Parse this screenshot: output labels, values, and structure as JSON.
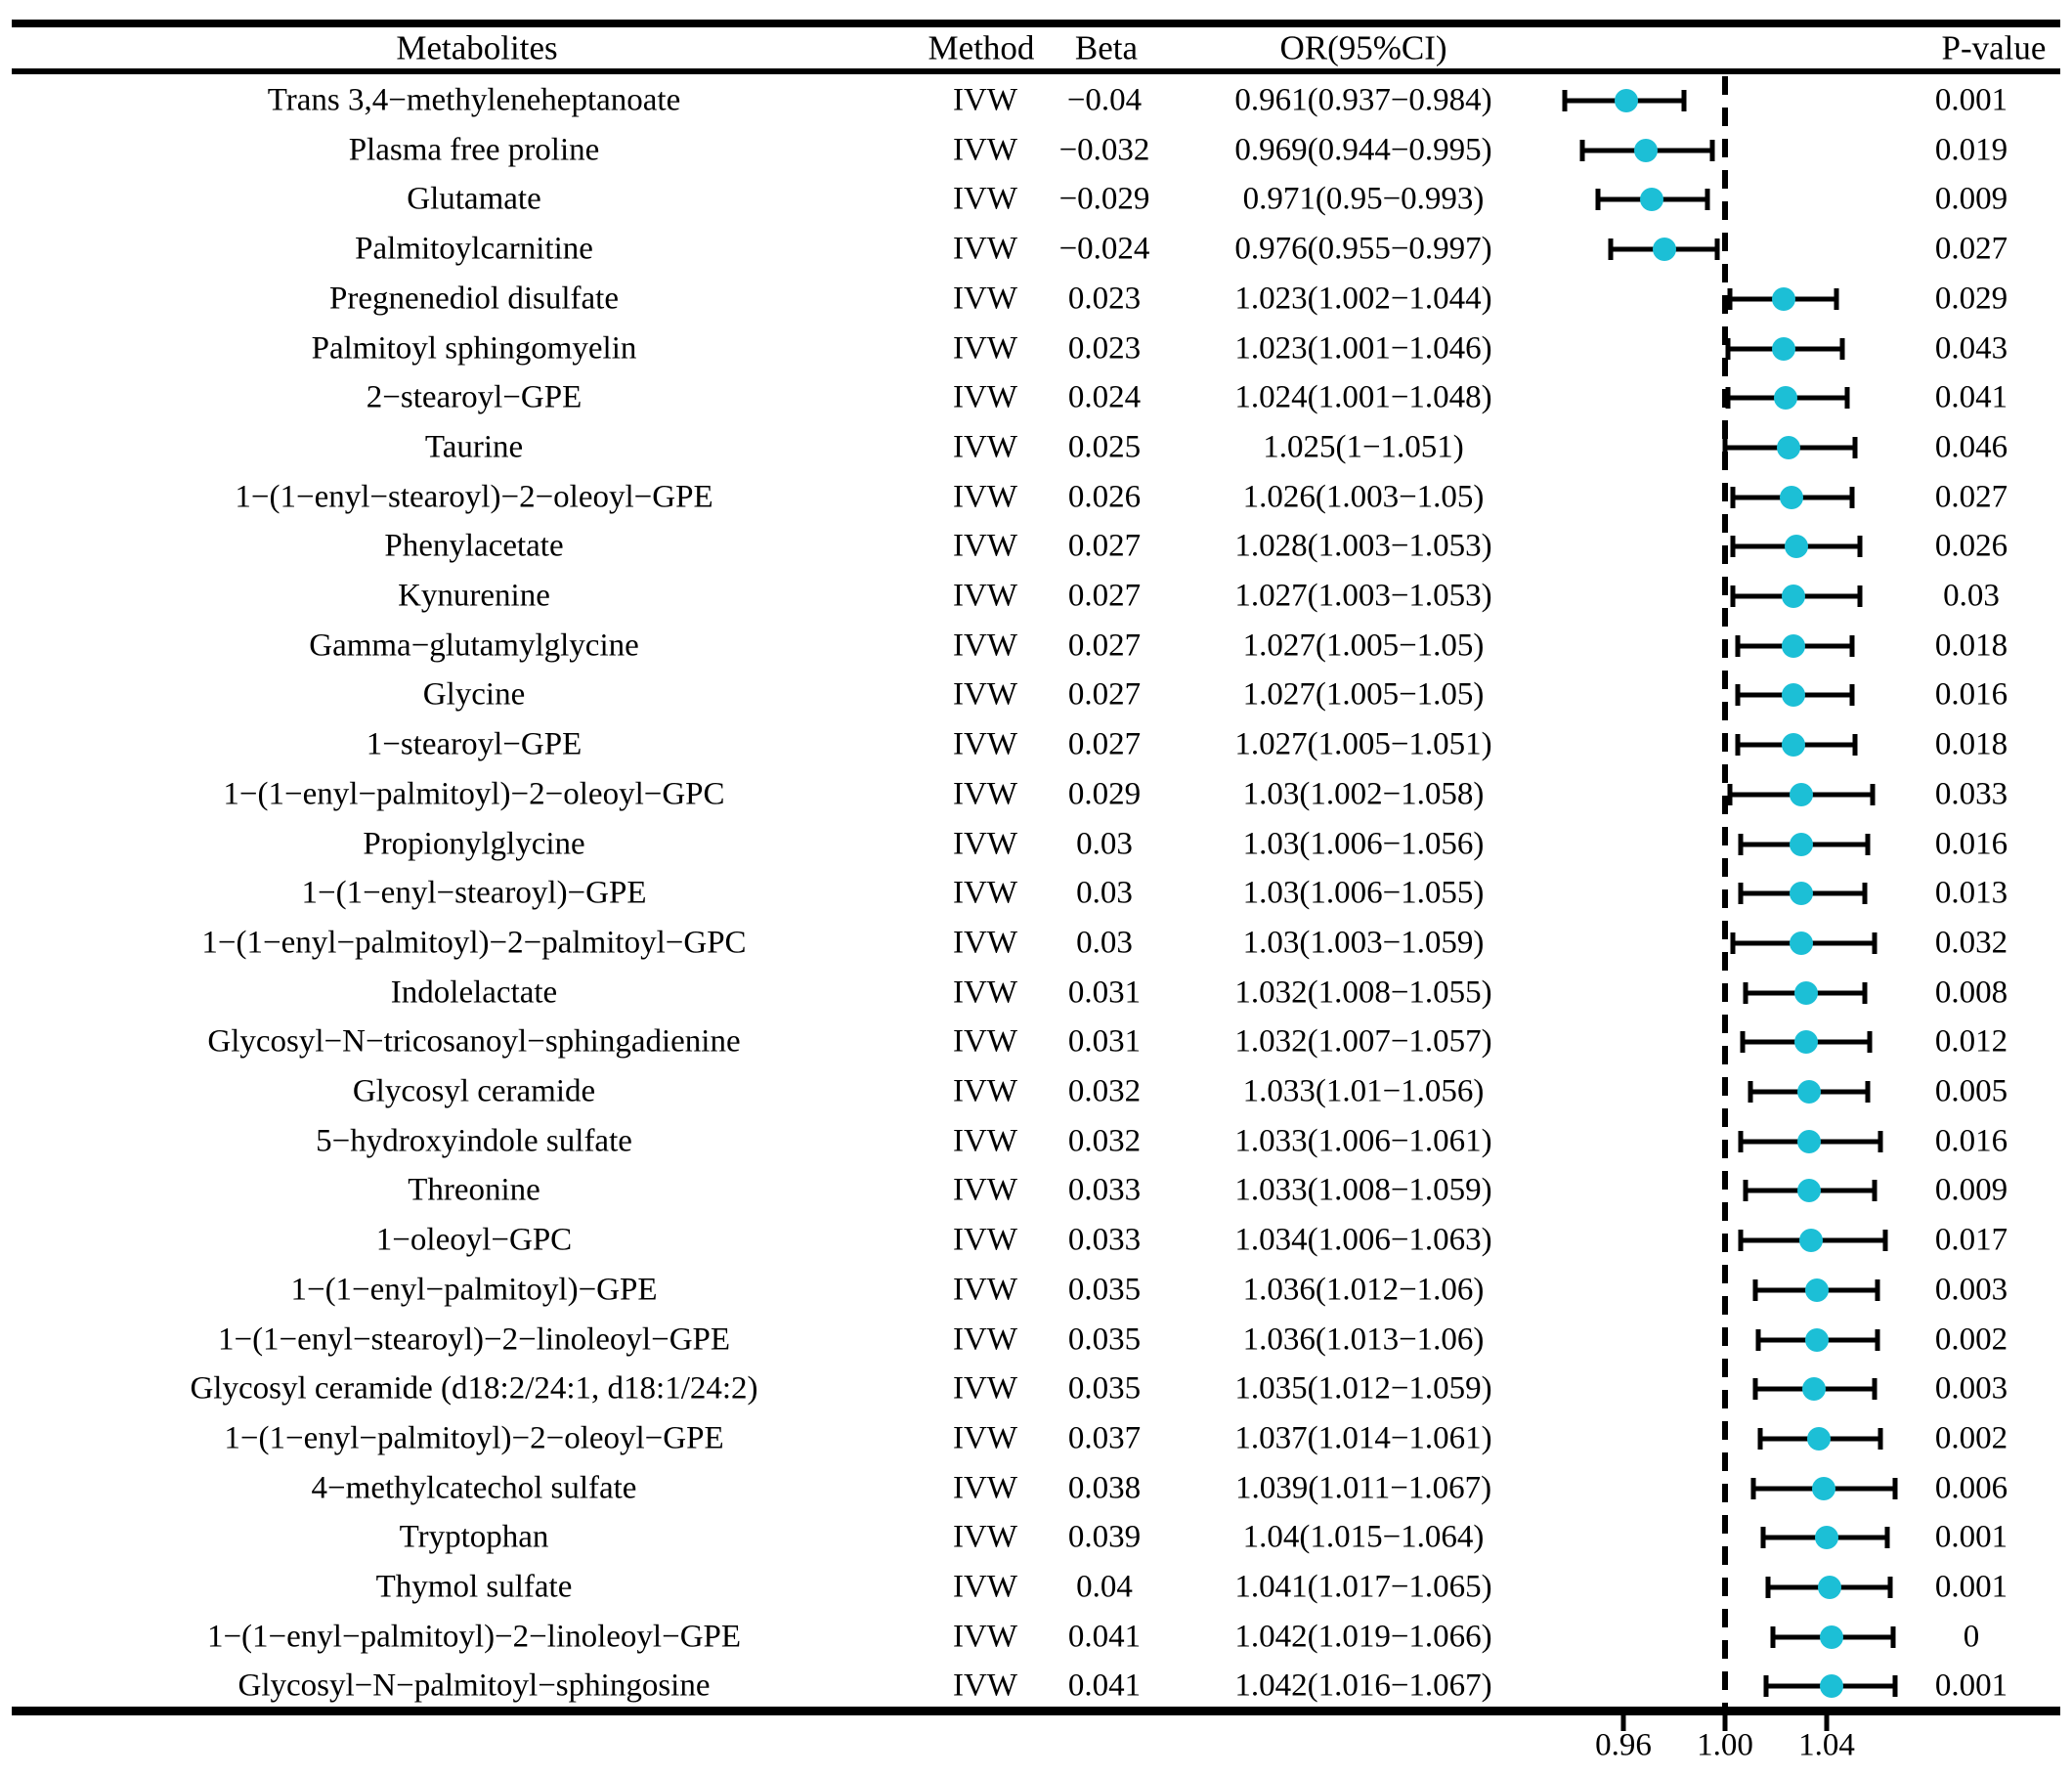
{
  "header": {
    "metabolites": "Metabolites",
    "method": "Method",
    "beta": "Beta",
    "or_ci": "OR(95%CI)",
    "p_value": "P-value"
  },
  "chart_data": {
    "type": "scatter",
    "subtype": "forest-plot",
    "title": "",
    "xlabel": "",
    "ylabel": "",
    "marker_color": "#1CBFD6",
    "errorbar_color": "#000000",
    "axis": {
      "tick_values": [
        0.96,
        1.0,
        1.04
      ],
      "tick_labels": [
        "0.96",
        "1.00",
        "1.04"
      ],
      "reference_line": 1.0,
      "grid": false
    },
    "rows": [
      {
        "metabolite": "Trans 3,4−methyleneheptanoate",
        "method": "IVW",
        "beta": "−0.04",
        "or_ci": "0.961(0.937−0.984)",
        "or": 0.961,
        "ci_low": 0.937,
        "ci_high": 0.984,
        "p": "0.001"
      },
      {
        "metabolite": "Plasma free proline",
        "method": "IVW",
        "beta": "−0.032",
        "or_ci": "0.969(0.944−0.995)",
        "or": 0.969,
        "ci_low": 0.944,
        "ci_high": 0.995,
        "p": "0.019"
      },
      {
        "metabolite": "Glutamate",
        "method": "IVW",
        "beta": "−0.029",
        "or_ci": "0.971(0.95−0.993)",
        "or": 0.971,
        "ci_low": 0.95,
        "ci_high": 0.993,
        "p": "0.009"
      },
      {
        "metabolite": "Palmitoylcarnitine",
        "method": "IVW",
        "beta": "−0.024",
        "or_ci": "0.976(0.955−0.997)",
        "or": 0.976,
        "ci_low": 0.955,
        "ci_high": 0.997,
        "p": "0.027"
      },
      {
        "metabolite": "Pregnenediol disulfate",
        "method": "IVW",
        "beta": "0.023",
        "or_ci": "1.023(1.002−1.044)",
        "or": 1.023,
        "ci_low": 1.002,
        "ci_high": 1.044,
        "p": "0.029"
      },
      {
        "metabolite": "Palmitoyl sphingomyelin",
        "method": "IVW",
        "beta": "0.023",
        "or_ci": "1.023(1.001−1.046)",
        "or": 1.023,
        "ci_low": 1.001,
        "ci_high": 1.046,
        "p": "0.043"
      },
      {
        "metabolite": "2−stearoyl−GPE",
        "method": "IVW",
        "beta": "0.024",
        "or_ci": "1.024(1.001−1.048)",
        "or": 1.024,
        "ci_low": 1.001,
        "ci_high": 1.048,
        "p": "0.041"
      },
      {
        "metabolite": "Taurine",
        "method": "IVW",
        "beta": "0.025",
        "or_ci": "1.025(1−1.051)",
        "or": 1.025,
        "ci_low": 1.0,
        "ci_high": 1.051,
        "p": "0.046"
      },
      {
        "metabolite": "1−(1−enyl−stearoyl)−2−oleoyl−GPE",
        "method": "IVW",
        "beta": "0.026",
        "or_ci": "1.026(1.003−1.05)",
        "or": 1.026,
        "ci_low": 1.003,
        "ci_high": 1.05,
        "p": "0.027"
      },
      {
        "metabolite": "Phenylacetate",
        "method": "IVW",
        "beta": "0.027",
        "or_ci": "1.028(1.003−1.053)",
        "or": 1.028,
        "ci_low": 1.003,
        "ci_high": 1.053,
        "p": "0.026"
      },
      {
        "metabolite": "Kynurenine",
        "method": "IVW",
        "beta": "0.027",
        "or_ci": "1.027(1.003−1.053)",
        "or": 1.027,
        "ci_low": 1.003,
        "ci_high": 1.053,
        "p": "0.03"
      },
      {
        "metabolite": "Gamma−glutamylglycine",
        "method": "IVW",
        "beta": "0.027",
        "or_ci": "1.027(1.005−1.05)",
        "or": 1.027,
        "ci_low": 1.005,
        "ci_high": 1.05,
        "p": "0.018"
      },
      {
        "metabolite": "Glycine",
        "method": "IVW",
        "beta": "0.027",
        "or_ci": "1.027(1.005−1.05)",
        "or": 1.027,
        "ci_low": 1.005,
        "ci_high": 1.05,
        "p": "0.016"
      },
      {
        "metabolite": "1−stearoyl−GPE",
        "method": "IVW",
        "beta": "0.027",
        "or_ci": "1.027(1.005−1.051)",
        "or": 1.027,
        "ci_low": 1.005,
        "ci_high": 1.051,
        "p": "0.018"
      },
      {
        "metabolite": "1−(1−enyl−palmitoyl)−2−oleoyl−GPC",
        "method": "IVW",
        "beta": "0.029",
        "or_ci": "1.03(1.002−1.058)",
        "or": 1.03,
        "ci_low": 1.002,
        "ci_high": 1.058,
        "p": "0.033"
      },
      {
        "metabolite": "Propionylglycine",
        "method": "IVW",
        "beta": "0.03",
        "or_ci": "1.03(1.006−1.056)",
        "or": 1.03,
        "ci_low": 1.006,
        "ci_high": 1.056,
        "p": "0.016"
      },
      {
        "metabolite": "1−(1−enyl−stearoyl)−GPE",
        "method": "IVW",
        "beta": "0.03",
        "or_ci": "1.03(1.006−1.055)",
        "or": 1.03,
        "ci_low": 1.006,
        "ci_high": 1.055,
        "p": "0.013"
      },
      {
        "metabolite": "1−(1−enyl−palmitoyl)−2−palmitoyl−GPC",
        "method": "IVW",
        "beta": "0.03",
        "or_ci": "1.03(1.003−1.059)",
        "or": 1.03,
        "ci_low": 1.003,
        "ci_high": 1.059,
        "p": "0.032"
      },
      {
        "metabolite": "Indolelactate",
        "method": "IVW",
        "beta": "0.031",
        "or_ci": "1.032(1.008−1.055)",
        "or": 1.032,
        "ci_low": 1.008,
        "ci_high": 1.055,
        "p": "0.008"
      },
      {
        "metabolite": "Glycosyl−N−tricosanoyl−sphingadienine",
        "method": "IVW",
        "beta": "0.031",
        "or_ci": "1.032(1.007−1.057)",
        "or": 1.032,
        "ci_low": 1.007,
        "ci_high": 1.057,
        "p": "0.012"
      },
      {
        "metabolite": "Glycosyl ceramide",
        "method": "IVW",
        "beta": "0.032",
        "or_ci": "1.033(1.01−1.056)",
        "or": 1.033,
        "ci_low": 1.01,
        "ci_high": 1.056,
        "p": "0.005"
      },
      {
        "metabolite": "5−hydroxyindole sulfate",
        "method": "IVW",
        "beta": "0.032",
        "or_ci": "1.033(1.006−1.061)",
        "or": 1.033,
        "ci_low": 1.006,
        "ci_high": 1.061,
        "p": "0.016"
      },
      {
        "metabolite": "Threonine",
        "method": "IVW",
        "beta": "0.033",
        "or_ci": "1.033(1.008−1.059)",
        "or": 1.033,
        "ci_low": 1.008,
        "ci_high": 1.059,
        "p": "0.009"
      },
      {
        "metabolite": "1−oleoyl−GPC",
        "method": "IVW",
        "beta": "0.033",
        "or_ci": "1.034(1.006−1.063)",
        "or": 1.034,
        "ci_low": 1.006,
        "ci_high": 1.063,
        "p": "0.017"
      },
      {
        "metabolite": "1−(1−enyl−palmitoyl)−GPE",
        "method": "IVW",
        "beta": "0.035",
        "or_ci": "1.036(1.012−1.06)",
        "or": 1.036,
        "ci_low": 1.012,
        "ci_high": 1.06,
        "p": "0.003"
      },
      {
        "metabolite": "1−(1−enyl−stearoyl)−2−linoleoyl−GPE",
        "method": "IVW",
        "beta": "0.035",
        "or_ci": "1.036(1.013−1.06)",
        "or": 1.036,
        "ci_low": 1.013,
        "ci_high": 1.06,
        "p": "0.002"
      },
      {
        "metabolite": "Glycosyl ceramide (d18:2/24:1, d18:1/24:2)",
        "method": "IVW",
        "beta": "0.035",
        "or_ci": "1.035(1.012−1.059)",
        "or": 1.035,
        "ci_low": 1.012,
        "ci_high": 1.059,
        "p": "0.003"
      },
      {
        "metabolite": "1−(1−enyl−palmitoyl)−2−oleoyl−GPE",
        "method": "IVW",
        "beta": "0.037",
        "or_ci": "1.037(1.014−1.061)",
        "or": 1.037,
        "ci_low": 1.014,
        "ci_high": 1.061,
        "p": "0.002"
      },
      {
        "metabolite": "4−methylcatechol sulfate",
        "method": "IVW",
        "beta": "0.038",
        "or_ci": "1.039(1.011−1.067)",
        "or": 1.039,
        "ci_low": 1.011,
        "ci_high": 1.067,
        "p": "0.006"
      },
      {
        "metabolite": "Tryptophan",
        "method": "IVW",
        "beta": "0.039",
        "or_ci": "1.04(1.015−1.064)",
        "or": 1.04,
        "ci_low": 1.015,
        "ci_high": 1.064,
        "p": "0.001"
      },
      {
        "metabolite": "Thymol sulfate",
        "method": "IVW",
        "beta": "0.04",
        "or_ci": "1.041(1.017−1.065)",
        "or": 1.041,
        "ci_low": 1.017,
        "ci_high": 1.065,
        "p": "0.001"
      },
      {
        "metabolite": "1−(1−enyl−palmitoyl)−2−linoleoyl−GPE",
        "method": "IVW",
        "beta": "0.041",
        "or_ci": "1.042(1.019−1.066)",
        "or": 1.042,
        "ci_low": 1.019,
        "ci_high": 1.066,
        "p": "0"
      },
      {
        "metabolite": "Glycosyl−N−palmitoyl−sphingosine",
        "method": "IVW",
        "beta": "0.041",
        "or_ci": "1.042(1.016−1.067)",
        "or": 1.042,
        "ci_low": 1.016,
        "ci_high": 1.067,
        "p": "0.001"
      }
    ]
  }
}
